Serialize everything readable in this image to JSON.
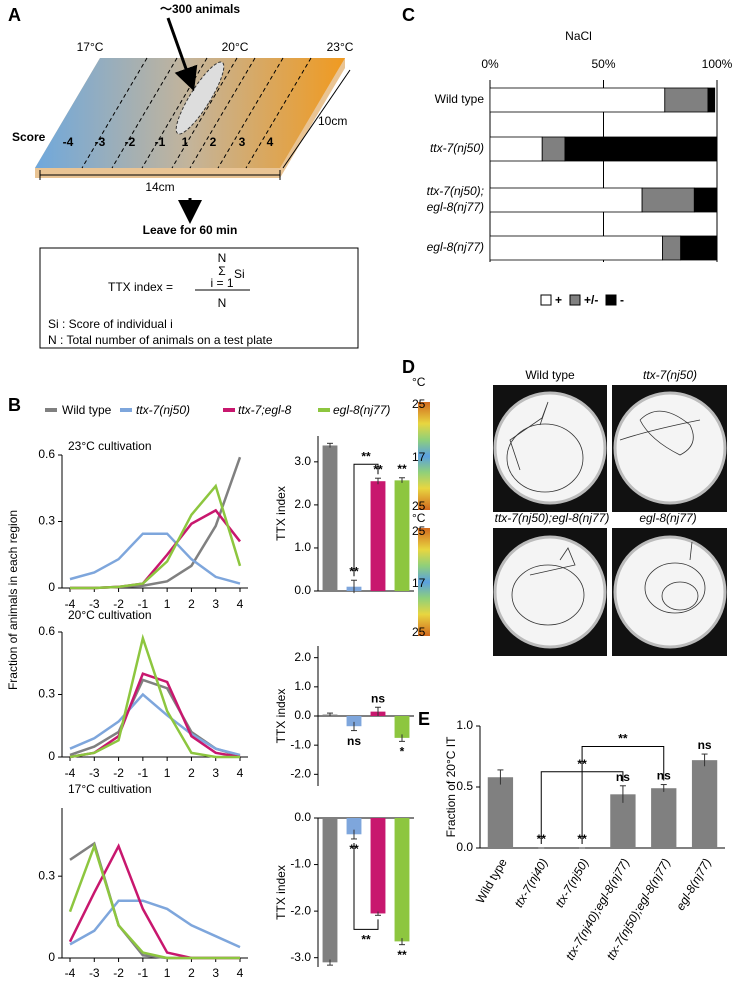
{
  "panel_a": {
    "letter": "A",
    "animals": "～300 animals",
    "temperatures": [
      "17°C",
      "20°C",
      "23°C"
    ],
    "score_label": "Score",
    "scores": [
      "-4",
      "-3",
      "-2",
      "-1",
      "1",
      "2",
      "3",
      "4"
    ],
    "width": "14cm",
    "depth": "10cm",
    "instruction": "Leave for 60 min",
    "formula": {
      "lhs": "TTX index =",
      "sum_top": "N",
      "sum": "Σ",
      "sum_bottom": "i = 1",
      "term": "Si",
      "denominator": "N"
    },
    "notes": [
      "Si : Score of individual i",
      "N : Total number of animals on a test plate"
    ]
  },
  "panel_b": {
    "letter": "B",
    "y_label": "Fraction of animals in each region"
  },
  "panel_c": {
    "letter": "C"
  },
  "panel_d": {
    "letter": "D",
    "unit": "°C",
    "scale": [
      "25",
      "17",
      "25"
    ],
    "labels": [
      "Wild type",
      "ttx-7(nj50)",
      "ttx-7(nj50);egl-8(nj77)",
      "egl-8(nj77)"
    ]
  },
  "panel_e": {
    "letter": "E"
  },
  "chart_data": [
    {
      "type": "line",
      "title": "23°C cultivation",
      "categories": [
        "-4",
        "-3",
        "-2",
        "-1",
        "1",
        "2",
        "3",
        "4"
      ],
      "ylim": [
        0,
        0.6
      ],
      "yticks": [
        0,
        0.3,
        0.6
      ],
      "series": [
        {
          "name": "Wild type",
          "color": "#808080",
          "values": [
            0,
            0,
            0.005,
            0.01,
            0.03,
            0.1,
            0.28,
            0.59
          ]
        },
        {
          "name": "ttx-7(nj50)",
          "color": "#7ea6dc",
          "values": [
            0.04,
            0.07,
            0.13,
            0.245,
            0.245,
            0.13,
            0.05,
            0.02
          ]
        },
        {
          "name": "ttx-7;egl-8",
          "color": "#c8176e",
          "values": [
            0,
            0,
            0.005,
            0.02,
            0.15,
            0.29,
            0.35,
            0.21
          ]
        },
        {
          "name": "egl-8(nj77)",
          "color": "#8dc63f",
          "values": [
            0,
            0,
            0.005,
            0.02,
            0.12,
            0.33,
            0.46,
            0.1
          ]
        }
      ]
    },
    {
      "type": "bar",
      "y_label": "TTX index",
      "values": [
        3.38,
        0.1,
        2.55,
        2.57
      ],
      "errors": [
        0.05,
        0.15,
        0.07,
        0.06
      ],
      "colors": [
        "#808080",
        "#7ea6dc",
        "#c8176e",
        "#8dc63f"
      ],
      "ylim": [
        0,
        3.6
      ],
      "yticks": [
        {
          "value": 0,
          "label": "0.0"
        },
        {
          "value": 1,
          "label": "1.0"
        },
        {
          "value": 2,
          "label": "2.0"
        },
        {
          "value": 3,
          "label": "3.0"
        }
      ],
      "annotations": [
        null,
        "**",
        "**",
        "**"
      ],
      "brackets": [
        {
          "label": "**",
          "from": 1,
          "to": 2
        }
      ]
    },
    {
      "type": "line",
      "title": "20°C cultivation",
      "categories": [
        "-4",
        "-3",
        "-2",
        "-1",
        "1",
        "2",
        "3",
        "4"
      ],
      "ylim": [
        0,
        0.6
      ],
      "yticks": [
        0,
        0.3,
        0.6
      ],
      "series": [
        {
          "color": "#808080",
          "values": [
            0.01,
            0.05,
            0.12,
            0.37,
            0.33,
            0.12,
            0.04,
            0.005
          ]
        },
        {
          "color": "#7ea6dc",
          "values": [
            0.04,
            0.09,
            0.17,
            0.3,
            0.2,
            0.11,
            0.04,
            0.01
          ]
        },
        {
          "color": "#c8176e",
          "values": [
            0,
            0.02,
            0.1,
            0.4,
            0.36,
            0.1,
            0.02,
            0
          ]
        },
        {
          "color": "#8dc63f",
          "values": [
            0,
            0.02,
            0.08,
            0.57,
            0.22,
            0.02,
            0,
            0
          ]
        }
      ]
    },
    {
      "type": "bar",
      "y_label": "TTX index",
      "values": [
        0.05,
        -0.35,
        0.15,
        -0.75
      ],
      "errors": [
        0.05,
        0.15,
        0.15,
        0.12
      ],
      "colors": [
        "#808080",
        "#7ea6dc",
        "#c8176e",
        "#8dc63f"
      ],
      "ylim": [
        -2.4,
        2.4
      ],
      "yticks": [
        {
          "value": 2,
          "label": "2.0"
        },
        {
          "value": 1,
          "label": "1.0"
        },
        {
          "value": 0,
          "label": "0.0"
        },
        {
          "value": -1,
          "label": "-1.0"
        },
        {
          "value": -2,
          "label": "-2.0"
        }
      ],
      "annotations": [
        null,
        "ns",
        "ns",
        "*"
      ]
    },
    {
      "type": "line",
      "title": "17°C cultivation",
      "categories": [
        "-4",
        "-3",
        "-2",
        "-1",
        "1",
        "2",
        "3",
        "4"
      ],
      "ylim": [
        0,
        0.55
      ],
      "yticks": [
        0,
        0.3
      ],
      "series": [
        {
          "color": "#808080",
          "values": [
            0.36,
            0.42,
            0.12,
            0.01,
            0,
            0,
            0,
            0
          ]
        },
        {
          "color": "#7ea6dc",
          "values": [
            0.05,
            0.1,
            0.21,
            0.21,
            0.18,
            0.12,
            0.08,
            0.04
          ]
        },
        {
          "color": "#c8176e",
          "values": [
            0.06,
            0.24,
            0.41,
            0.18,
            0.02,
            0,
            0,
            0
          ]
        },
        {
          "color": "#8dc63f",
          "values": [
            0.17,
            0.41,
            0.12,
            0.02,
            0,
            0,
            0,
            0
          ]
        }
      ]
    },
    {
      "type": "bar",
      "y_label": "TTX index",
      "values": [
        -3.1,
        -0.35,
        -2.05,
        -2.65
      ],
      "errors": [
        0.06,
        0.1,
        0.04,
        0.07
      ],
      "colors": [
        "#808080",
        "#7ea6dc",
        "#c8176e",
        "#8dc63f"
      ],
      "ylim": [
        -3.2,
        0
      ],
      "yticks": [
        {
          "value": 0,
          "label": "0.0"
        },
        {
          "value": -1,
          "label": "-1.0"
        },
        {
          "value": -2,
          "label": "-2.0"
        },
        {
          "value": -3,
          "label": "-3.0"
        }
      ],
      "annotations": [
        null,
        "**",
        null,
        "**"
      ],
      "brackets": [
        {
          "label": "**",
          "from": 1,
          "to": 2
        }
      ]
    },
    {
      "type": "stacked_bar",
      "title": "NaCl",
      "categories": [
        "Wild type",
        "ttx-7(nj50)",
        "ttx-7(nj50);\negl-8(nj77)",
        "egl-8(nj77)"
      ],
      "xlim": [
        0,
        100
      ],
      "xticks": [
        {
          "value": 0,
          "label": "0%"
        },
        {
          "value": 50,
          "label": "50%"
        },
        {
          "value": 100,
          "label": "100%"
        }
      ],
      "series": [
        {
          "name": "+",
          "color": "#ffffff",
          "values": [
            77,
            23,
            67,
            76
          ]
        },
        {
          "name": "+/-",
          "color": "#808080",
          "values": [
            19,
            10,
            23,
            8
          ]
        },
        {
          "name": "-",
          "color": "#000000",
          "values": [
            3,
            67,
            10,
            16
          ]
        }
      ]
    },
    {
      "type": "bar",
      "y_label": "Fraction of 20°C IT",
      "categories": [
        "Wild type",
        "ttx-7(nj40)",
        "ttx-7(nj50)",
        "ttx-7(nj40);egl-8(nj77)",
        "ttx-7(nj50);egl-8(nj77)",
        "egl-8(nj77)"
      ],
      "values": [
        0.58,
        0,
        0,
        0.44,
        0.49,
        0.72
      ],
      "errors": [
        0.06,
        0,
        0,
        0.07,
        0.03,
        0.05
      ],
      "color": "#808080",
      "ylim": [
        0,
        1
      ],
      "yticks": [
        {
          "value": 0,
          "label": "0.0"
        },
        {
          "value": 0.5,
          "label": "0.5"
        },
        {
          "value": 1,
          "label": "1.0"
        }
      ],
      "annotations": [
        null,
        "**",
        "**",
        "ns",
        "ns",
        "ns"
      ],
      "brackets": [
        {
          "label": "**",
          "from": 1,
          "to": 3
        },
        {
          "label": "**",
          "from": 2,
          "to": 4
        }
      ]
    }
  ]
}
